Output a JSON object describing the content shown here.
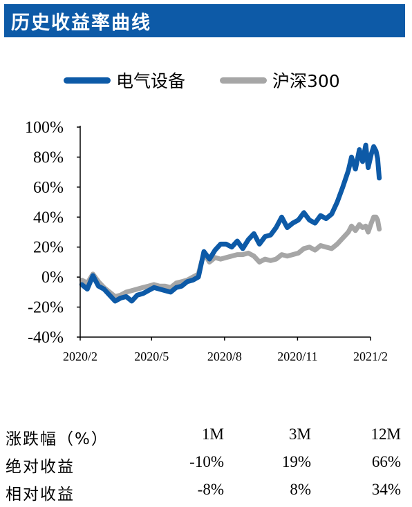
{
  "header": {
    "title": "历史收益率曲线"
  },
  "legend": [
    {
      "label": "电气设备",
      "color": "#0d5aa7"
    },
    {
      "label": "沪深300",
      "color": "#a6a6a6"
    }
  ],
  "chart_data": {
    "type": "line",
    "title": "",
    "xlabel": "",
    "ylabel": "",
    "x_ticks": [
      "2020/2",
      "2020/5",
      "2020/8",
      "2020/11",
      "2021/2"
    ],
    "y_ticks": [
      "100%",
      "80%",
      "60%",
      "40%",
      "20%",
      "0%",
      "-20%",
      "-40%"
    ],
    "ylim": [
      -40,
      100
    ],
    "y_unit": "%",
    "grid": false,
    "legend_position": "top",
    "series": [
      {
        "name": "电气设备",
        "color": "#0d5aa7",
        "points": [
          [
            "2020-02-03",
            -5
          ],
          [
            "2020-02-10",
            -8
          ],
          [
            "2020-02-17",
            1
          ],
          [
            "2020-02-24",
            -6
          ],
          [
            "2020-03-02",
            -8
          ],
          [
            "2020-03-09",
            -12
          ],
          [
            "2020-03-16",
            -16
          ],
          [
            "2020-03-23",
            -14
          ],
          [
            "2020-03-30",
            -13
          ],
          [
            "2020-04-06",
            -16
          ],
          [
            "2020-04-13",
            -12
          ],
          [
            "2020-04-20",
            -11
          ],
          [
            "2020-04-27",
            -9
          ],
          [
            "2020-05-04",
            -7
          ],
          [
            "2020-05-11",
            -8
          ],
          [
            "2020-05-18",
            -9
          ],
          [
            "2020-05-25",
            -10
          ],
          [
            "2020-06-01",
            -7
          ],
          [
            "2020-06-08",
            -6
          ],
          [
            "2020-06-15",
            -3
          ],
          [
            "2020-06-22",
            -2
          ],
          [
            "2020-06-29",
            0
          ],
          [
            "2020-07-06",
            17
          ],
          [
            "2020-07-13",
            12
          ],
          [
            "2020-07-20",
            18
          ],
          [
            "2020-07-27",
            22
          ],
          [
            "2020-08-03",
            22
          ],
          [
            "2020-08-10",
            20
          ],
          [
            "2020-08-17",
            24
          ],
          [
            "2020-08-24",
            19
          ],
          [
            "2020-08-31",
            25
          ],
          [
            "2020-09-07",
            29
          ],
          [
            "2020-09-14",
            22
          ],
          [
            "2020-09-21",
            27
          ],
          [
            "2020-09-28",
            28
          ],
          [
            "2020-10-05",
            33
          ],
          [
            "2020-10-12",
            40
          ],
          [
            "2020-10-19",
            33
          ],
          [
            "2020-10-26",
            36
          ],
          [
            "2020-11-02",
            38
          ],
          [
            "2020-11-09",
            43
          ],
          [
            "2020-11-16",
            38
          ],
          [
            "2020-11-23",
            36
          ],
          [
            "2020-11-30",
            41
          ],
          [
            "2020-12-07",
            39
          ],
          [
            "2020-12-14",
            42
          ],
          [
            "2020-12-21",
            50
          ],
          [
            "2020-12-28",
            60
          ],
          [
            "2021-01-04",
            71
          ],
          [
            "2021-01-08",
            80
          ],
          [
            "2021-01-13",
            72
          ],
          [
            "2021-01-18",
            85
          ],
          [
            "2021-01-22",
            77
          ],
          [
            "2021-01-26",
            88
          ],
          [
            "2021-01-29",
            73
          ],
          [
            "2021-02-02",
            82
          ],
          [
            "2021-02-05",
            87
          ],
          [
            "2021-02-08",
            84
          ],
          [
            "2021-02-10",
            79
          ],
          [
            "2021-02-12",
            66
          ]
        ]
      },
      {
        "name": "沪深300",
        "color": "#a6a6a6",
        "points": [
          [
            "2020-02-03",
            -2
          ],
          [
            "2020-02-10",
            -4
          ],
          [
            "2020-02-17",
            2
          ],
          [
            "2020-02-24",
            -3
          ],
          [
            "2020-03-02",
            -7
          ],
          [
            "2020-03-09",
            -10
          ],
          [
            "2020-03-16",
            -13
          ],
          [
            "2020-03-23",
            -12
          ],
          [
            "2020-03-30",
            -10
          ],
          [
            "2020-04-06",
            -9
          ],
          [
            "2020-04-13",
            -8
          ],
          [
            "2020-04-20",
            -7
          ],
          [
            "2020-04-27",
            -6
          ],
          [
            "2020-05-04",
            -5
          ],
          [
            "2020-05-11",
            -6
          ],
          [
            "2020-05-18",
            -6
          ],
          [
            "2020-05-25",
            -7
          ],
          [
            "2020-06-01",
            -4
          ],
          [
            "2020-06-08",
            -3
          ],
          [
            "2020-06-15",
            -2
          ],
          [
            "2020-06-22",
            0
          ],
          [
            "2020-06-29",
            2
          ],
          [
            "2020-07-06",
            16
          ],
          [
            "2020-07-13",
            10
          ],
          [
            "2020-07-20",
            13
          ],
          [
            "2020-07-27",
            12
          ],
          [
            "2020-08-03",
            13
          ],
          [
            "2020-08-10",
            14
          ],
          [
            "2020-08-17",
            15
          ],
          [
            "2020-08-24",
            15
          ],
          [
            "2020-08-31",
            16
          ],
          [
            "2020-09-07",
            14
          ],
          [
            "2020-09-14",
            10
          ],
          [
            "2020-09-21",
            12
          ],
          [
            "2020-09-28",
            11
          ],
          [
            "2020-10-05",
            12
          ],
          [
            "2020-10-12",
            15
          ],
          [
            "2020-10-19",
            14
          ],
          [
            "2020-10-26",
            15
          ],
          [
            "2020-11-02",
            16
          ],
          [
            "2020-11-09",
            19
          ],
          [
            "2020-11-16",
            20
          ],
          [
            "2020-11-23",
            18
          ],
          [
            "2020-11-30",
            21
          ],
          [
            "2020-12-07",
            20
          ],
          [
            "2020-12-14",
            19
          ],
          [
            "2020-12-21",
            22
          ],
          [
            "2020-12-28",
            26
          ],
          [
            "2021-01-04",
            30
          ],
          [
            "2021-01-08",
            34
          ],
          [
            "2021-01-13",
            31
          ],
          [
            "2021-01-18",
            35
          ],
          [
            "2021-01-22",
            33
          ],
          [
            "2021-01-26",
            34
          ],
          [
            "2021-01-29",
            30
          ],
          [
            "2021-02-02",
            36
          ],
          [
            "2021-02-05",
            40
          ],
          [
            "2021-02-08",
            40
          ],
          [
            "2021-02-10",
            38
          ],
          [
            "2021-02-12",
            32
          ]
        ]
      }
    ]
  },
  "table": {
    "header": [
      "涨跌幅（%）",
      "1M",
      "3M",
      "12M"
    ],
    "rows": [
      [
        "绝对收益",
        "-10%",
        "19%",
        "66%"
      ],
      [
        "相对收益",
        "-8%",
        "8%",
        "34%"
      ]
    ]
  }
}
